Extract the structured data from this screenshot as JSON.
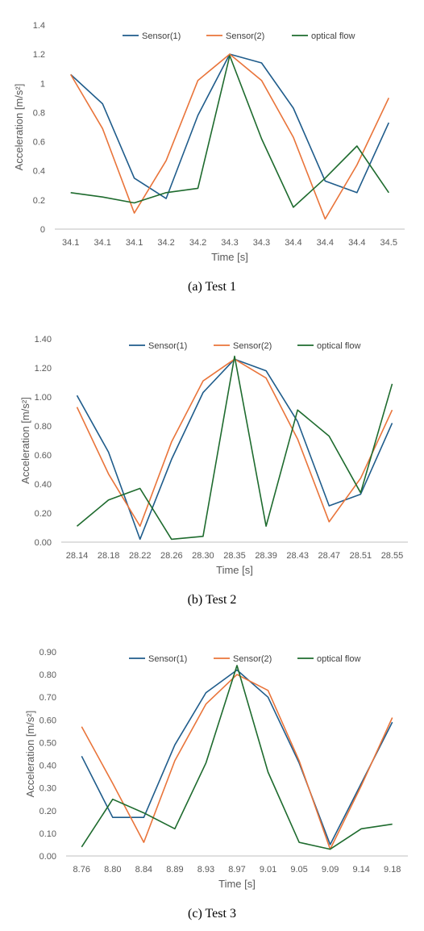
{
  "colors": {
    "sensor1": "#1F5C8B",
    "sensor2": "#E9743A",
    "optical": "#1E6B2E",
    "axis": "#BFBFBF",
    "text": "#595959"
  },
  "chart_data": [
    {
      "type": "line",
      "caption": "(a) Test 1",
      "xlabel": "Time [s]",
      "ylabel": "Acceleration [m/s²]",
      "categories": [
        "34.1",
        "34.1",
        "34.1",
        "34.2",
        "34.2",
        "34.3",
        "34.3",
        "34.4",
        "34.4",
        "34.4",
        "34.5"
      ],
      "ylim": [
        0,
        1.4
      ],
      "yticks": [
        "0",
        "0.2",
        "0.4",
        "0.6",
        "0.8",
        "1",
        "1.2",
        "1.4"
      ],
      "legend_position": "top",
      "series": [
        {
          "name": "Sensor(1)",
          "color": "#1F5C8B",
          "values": [
            1.06,
            0.86,
            0.35,
            0.21,
            0.78,
            1.2,
            1.14,
            0.83,
            0.33,
            0.25,
            0.73
          ]
        },
        {
          "name": "Sensor(2)",
          "color": "#E9743A",
          "values": [
            1.06,
            0.69,
            0.11,
            0.47,
            1.02,
            1.2,
            1.02,
            0.63,
            0.07,
            0.44,
            0.9
          ]
        },
        {
          "name": "optical flow",
          "color": "#1E6B2E",
          "values": [
            0.25,
            0.22,
            0.18,
            0.25,
            0.28,
            1.19,
            0.62,
            0.15,
            0.35,
            0.57,
            0.25
          ]
        }
      ]
    },
    {
      "type": "line",
      "caption": "(b) Test 2",
      "xlabel": "Time [s]",
      "ylabel": "Acceleration [m/s²]",
      "categories": [
        "28.14",
        "28.18",
        "28.22",
        "28.26",
        "28.30",
        "28.35",
        "28.39",
        "28.43",
        "28.47",
        "28.51",
        "28.55"
      ],
      "ylim": [
        0,
        1.4
      ],
      "yticks": [
        "0.00",
        "0.20",
        "0.40",
        "0.60",
        "0.80",
        "1.00",
        "1.20",
        "1.40"
      ],
      "legend_position": "top",
      "series": [
        {
          "name": "Sensor(1)",
          "color": "#1F5C8B",
          "values": [
            1.01,
            0.62,
            0.02,
            0.57,
            1.03,
            1.26,
            1.18,
            0.83,
            0.25,
            0.33,
            0.82
          ]
        },
        {
          "name": "Sensor(2)",
          "color": "#E9743A",
          "values": [
            0.93,
            0.47,
            0.11,
            0.69,
            1.11,
            1.26,
            1.13,
            0.71,
            0.14,
            0.44,
            0.91
          ]
        },
        {
          "name": "optical flow",
          "color": "#1E6B2E",
          "values": [
            0.11,
            0.29,
            0.37,
            0.02,
            0.04,
            1.28,
            0.11,
            0.91,
            0.73,
            0.34,
            1.09
          ]
        }
      ]
    },
    {
      "type": "line",
      "caption": "(c) Test 3",
      "xlabel": "Time [s]",
      "ylabel": "Acceleration [m/s²]",
      "categories": [
        "8.76",
        "8.80",
        "8.84",
        "8.89",
        "8.93",
        "8.97",
        "9.01",
        "9.05",
        "9.09",
        "9.14",
        "9.18"
      ],
      "ylim": [
        0,
        0.9
      ],
      "yticks": [
        "0.00",
        "0.10",
        "0.20",
        "0.30",
        "0.40",
        "0.50",
        "0.60",
        "0.70",
        "0.80",
        "0.90"
      ],
      "legend_position": "top",
      "series": [
        {
          "name": "Sensor(1)",
          "color": "#1F5C8B",
          "values": [
            0.44,
            0.17,
            0.17,
            0.49,
            0.72,
            0.82,
            0.7,
            0.41,
            0.05,
            0.32,
            0.59
          ]
        },
        {
          "name": "Sensor(2)",
          "color": "#E9743A",
          "values": [
            0.57,
            0.32,
            0.06,
            0.42,
            0.67,
            0.8,
            0.73,
            0.42,
            0.03,
            0.31,
            0.61
          ]
        },
        {
          "name": "optical flow",
          "color": "#1E6B2E",
          "values": [
            0.04,
            0.25,
            0.19,
            0.12,
            0.41,
            0.84,
            0.37,
            0.06,
            0.03,
            0.12,
            0.14
          ]
        }
      ]
    }
  ]
}
